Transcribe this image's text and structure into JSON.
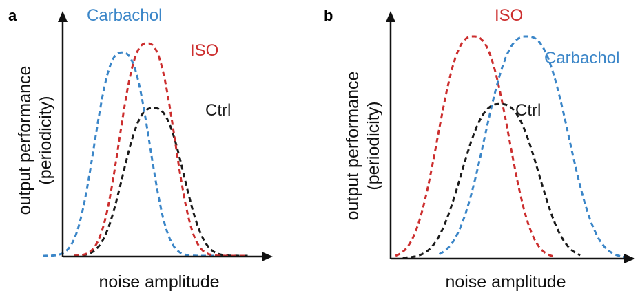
{
  "colors": {
    "carbachol": "#3b86c8",
    "iso": "#cc2e2e",
    "ctrl": "#1a1a1a",
    "axis": "#111111"
  },
  "panels": [
    {
      "letter": "a",
      "ylabel_line1": "output performance",
      "ylabel_line2": "(periodicity)",
      "xlabel": "noise amplitude",
      "labels": {
        "carbachol": "Carbachol",
        "iso": "ISO",
        "ctrl": "Ctrl"
      },
      "curves": {
        "carbachol": {
          "center": 0.38,
          "peak": 0.88,
          "width": 0.1
        },
        "iso": {
          "center": 0.5,
          "peak": 0.92,
          "width": 0.1
        },
        "ctrl": {
          "center": 0.53,
          "peak": 0.64,
          "width": 0.11
        }
      }
    },
    {
      "letter": "b",
      "ylabel_line1": "output performance",
      "ylabel_line2": "(periodicity)",
      "xlabel": "noise amplitude",
      "labels": {
        "carbachol": "Carbachol",
        "iso": "ISO",
        "ctrl": "Ctrl"
      },
      "curves": {
        "iso": {
          "center": 0.34,
          "peak": 0.95,
          "width": 0.11
        },
        "carbachol": {
          "center": 0.56,
          "peak": 0.95,
          "width": 0.13
        },
        "ctrl": {
          "center": 0.45,
          "peak": 0.66,
          "width": 0.12
        }
      }
    }
  ]
}
